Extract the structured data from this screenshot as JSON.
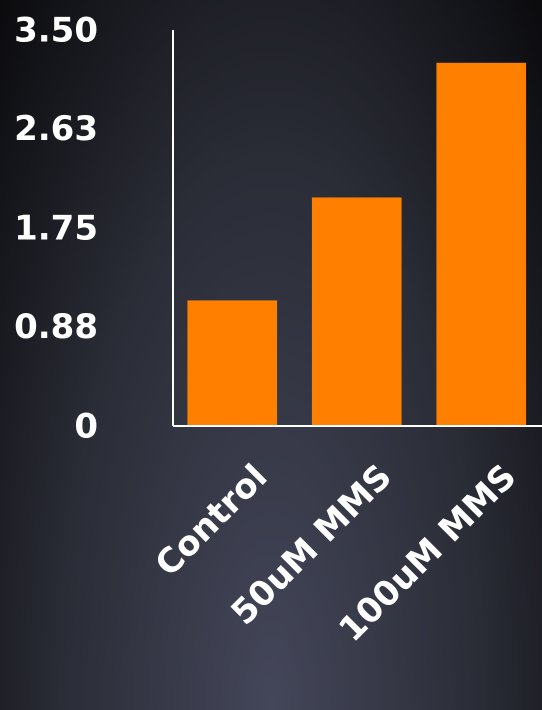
{
  "chart_data": {
    "type": "bar",
    "categories": [
      "Control",
      "50uM MMS",
      "100uM MMS"
    ],
    "values": [
      1.11,
      2.02,
      3.21
    ],
    "color": "#ff8000",
    "ylim": [
      0,
      3.5
    ],
    "yticks": [
      0,
      0.88,
      1.75,
      2.63,
      {
        "value": 3.5,
        "label": "3.50"
      }
    ]
  }
}
